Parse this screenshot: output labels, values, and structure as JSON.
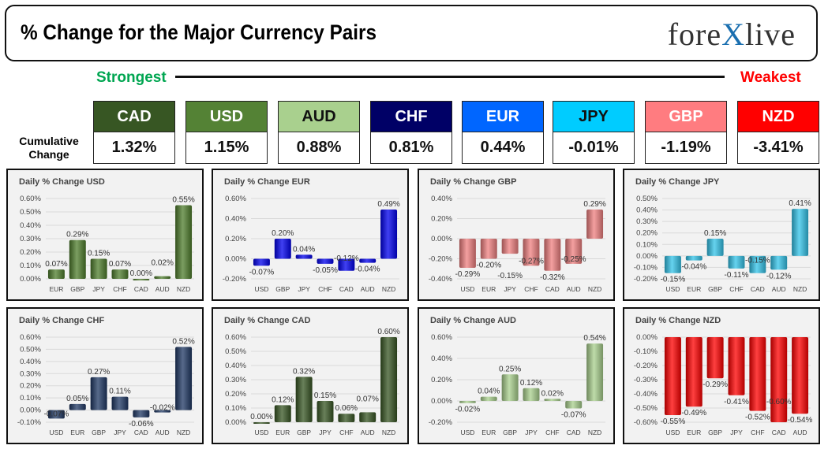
{
  "header": {
    "title": "% Change for the Major Currency Pairs",
    "logo": "forexlive"
  },
  "strongest_label": "Strongest",
  "weakest_label": "Weakest",
  "cumulative_label": "Cumulative Change",
  "tiles": [
    {
      "currency": "CAD",
      "value": "1.32%",
      "color": "#375623",
      "text": "#ffffff"
    },
    {
      "currency": "USD",
      "value": "1.15%",
      "color": "#548235",
      "text": "#ffffff"
    },
    {
      "currency": "AUD",
      "value": "0.88%",
      "color": "#a9d08e",
      "text": "#111111"
    },
    {
      "currency": "CHF",
      "value": "0.81%",
      "color": "#000066",
      "text": "#ffffff"
    },
    {
      "currency": "EUR",
      "value": "0.44%",
      "color": "#0066ff",
      "text": "#ffffff"
    },
    {
      "currency": "JPY",
      "value": "-0.01%",
      "color": "#00ccff",
      "text": "#111111"
    },
    {
      "currency": "GBP",
      "value": "-1.19%",
      "color": "#ff7c80",
      "text": "#ffffff"
    },
    {
      "currency": "NZD",
      "value": "-3.41%",
      "color": "#ff0000",
      "text": "#ffffff"
    }
  ],
  "chart_data": [
    {
      "type": "bar",
      "title": "Daily % Change USD",
      "color": "#4f7d2c",
      "ylim": [
        0,
        0.6
      ],
      "step": 0.1,
      "categories": [
        "EUR",
        "GBP",
        "JPY",
        "CHF",
        "CAD",
        "AUD",
        "NZD"
      ],
      "values": [
        0.07,
        0.29,
        0.15,
        0.07,
        0.0,
        0.02,
        0.55
      ]
    },
    {
      "type": "bar",
      "title": "Daily % Change EUR",
      "color": "#0000ee",
      "ylim": [
        -0.2,
        0.6
      ],
      "step": 0.2,
      "categories": [
        "USD",
        "GBP",
        "JPY",
        "CHF",
        "CAD",
        "AUD",
        "NZD"
      ],
      "values": [
        -0.07,
        0.2,
        0.04,
        -0.05,
        -0.12,
        -0.04,
        0.49
      ]
    },
    {
      "type": "bar",
      "title": "Daily % Change GBP",
      "color": "#f08080",
      "ylim": [
        -0.4,
        0.4
      ],
      "step": 0.2,
      "categories": [
        "USD",
        "EUR",
        "JPY",
        "CHF",
        "CAD",
        "AUD",
        "NZD"
      ],
      "values": [
        -0.29,
        -0.2,
        -0.15,
        -0.27,
        -0.32,
        -0.25,
        0.29
      ]
    },
    {
      "type": "bar",
      "title": "Daily % Change JPY",
      "color": "#33c4ea",
      "ylim": [
        -0.2,
        0.5
      ],
      "step": 0.1,
      "categories": [
        "USD",
        "EUR",
        "GBP",
        "CHF",
        "CAD",
        "AUD",
        "NZD"
      ],
      "values": [
        -0.15,
        -0.04,
        0.15,
        -0.11,
        -0.15,
        -0.12,
        0.41
      ]
    },
    {
      "type": "bar",
      "title": "Daily % Change CHF",
      "color": "#1f3864",
      "ylim": [
        -0.1,
        0.6
      ],
      "step": 0.1,
      "categories": [
        "USD",
        "EUR",
        "GBP",
        "JPY",
        "CAD",
        "AUD",
        "NZD"
      ],
      "values": [
        -0.07,
        0.05,
        0.27,
        0.11,
        -0.06,
        -0.02,
        0.52
      ]
    },
    {
      "type": "bar",
      "title": "Daily % Change CAD",
      "color": "#375623",
      "ylim": [
        0,
        0.6
      ],
      "step": 0.1,
      "categories": [
        "USD",
        "EUR",
        "GBP",
        "JPY",
        "CHF",
        "AUD",
        "NZD"
      ],
      "values": [
        0.0,
        0.12,
        0.32,
        0.15,
        0.06,
        0.07,
        0.6
      ]
    },
    {
      "type": "bar",
      "title": "Daily % Change AUD",
      "color": "#a9d08e",
      "ylim": [
        -0.2,
        0.6
      ],
      "step": 0.2,
      "categories": [
        "USD",
        "EUR",
        "GBP",
        "JPY",
        "CHF",
        "CAD",
        "NZD"
      ],
      "values": [
        -0.02,
        0.04,
        0.25,
        0.12,
        0.02,
        -0.07,
        0.54
      ]
    },
    {
      "type": "bar",
      "title": "Daily % Change NZD",
      "color": "#ff0000",
      "ylim": [
        -0.6,
        0
      ],
      "step": 0.1,
      "categories": [
        "USD",
        "EUR",
        "GBP",
        "JPY",
        "CHF",
        "CAD",
        "AUD"
      ],
      "values": [
        -0.55,
        -0.49,
        -0.29,
        -0.41,
        -0.52,
        -0.6,
        -0.54
      ]
    }
  ]
}
